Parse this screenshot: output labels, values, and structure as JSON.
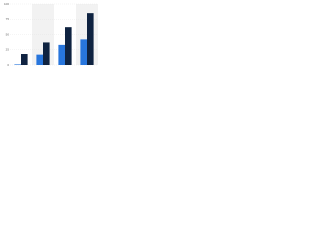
{
  "chart_data": {
    "type": "bar",
    "categories": [
      null,
      null,
      null,
      null
    ],
    "series": [
      {
        "name": null,
        "color": "#2876dd",
        "values": [
          1,
          17,
          33,
          42
        ]
      },
      {
        "name": null,
        "color": "#0f2341",
        "values": [
          18,
          37,
          62,
          85
        ]
      }
    ],
    "ylim": [
      0,
      100
    ],
    "yticks": [
      0,
      25,
      50,
      75,
      100
    ],
    "grid": true
  }
}
